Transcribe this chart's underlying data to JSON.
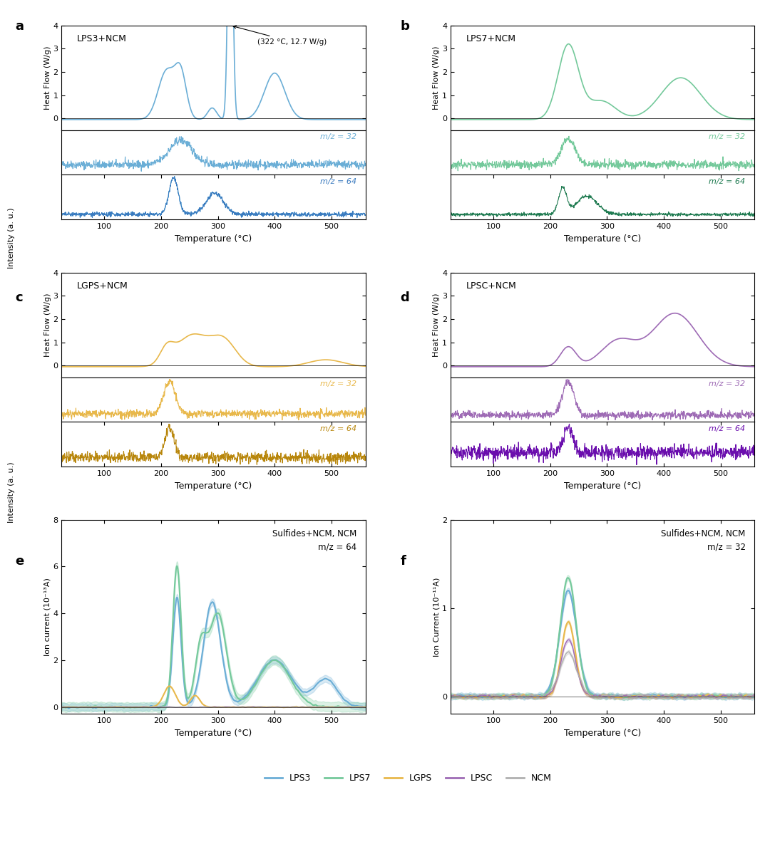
{
  "colors": {
    "LPS3": "#6baed6",
    "LPS7": "#74c99b",
    "LGPS": "#e8b84b",
    "LPSC": "#9e6bb5",
    "NCM": "#b0b0b0"
  },
  "panels": {
    "a_label": "LPS3+NCM",
    "b_label": "LPS7+NCM",
    "c_label": "LGPS+NCM",
    "d_label": "LPSC+NCM"
  },
  "annotation": "(322 °C, 12.7 W/g)",
  "xlabel": "Temperature (°C)",
  "ylabel_hf": "Heat Flow (W/g)",
  "ylabel_int": "Intensity (a. u.)",
  "ylabel_ion_e": "Ion current (10⁻¹³A)",
  "ylabel_ion_f": "Ion Current (10⁻¹¹A)",
  "mz32": "m/z = 32",
  "mz64": "m/z = 64",
  "panel_e_title": "Sulfides+NCM, NCM\nm/z = 64",
  "panel_f_title": "Sulfides+NCM, NCM\nm/z = 32",
  "legend_labels": [
    "LPS3",
    "LPS7",
    "LGPS",
    "LPSC",
    "NCM"
  ],
  "xmin": 25,
  "xmax": 560
}
